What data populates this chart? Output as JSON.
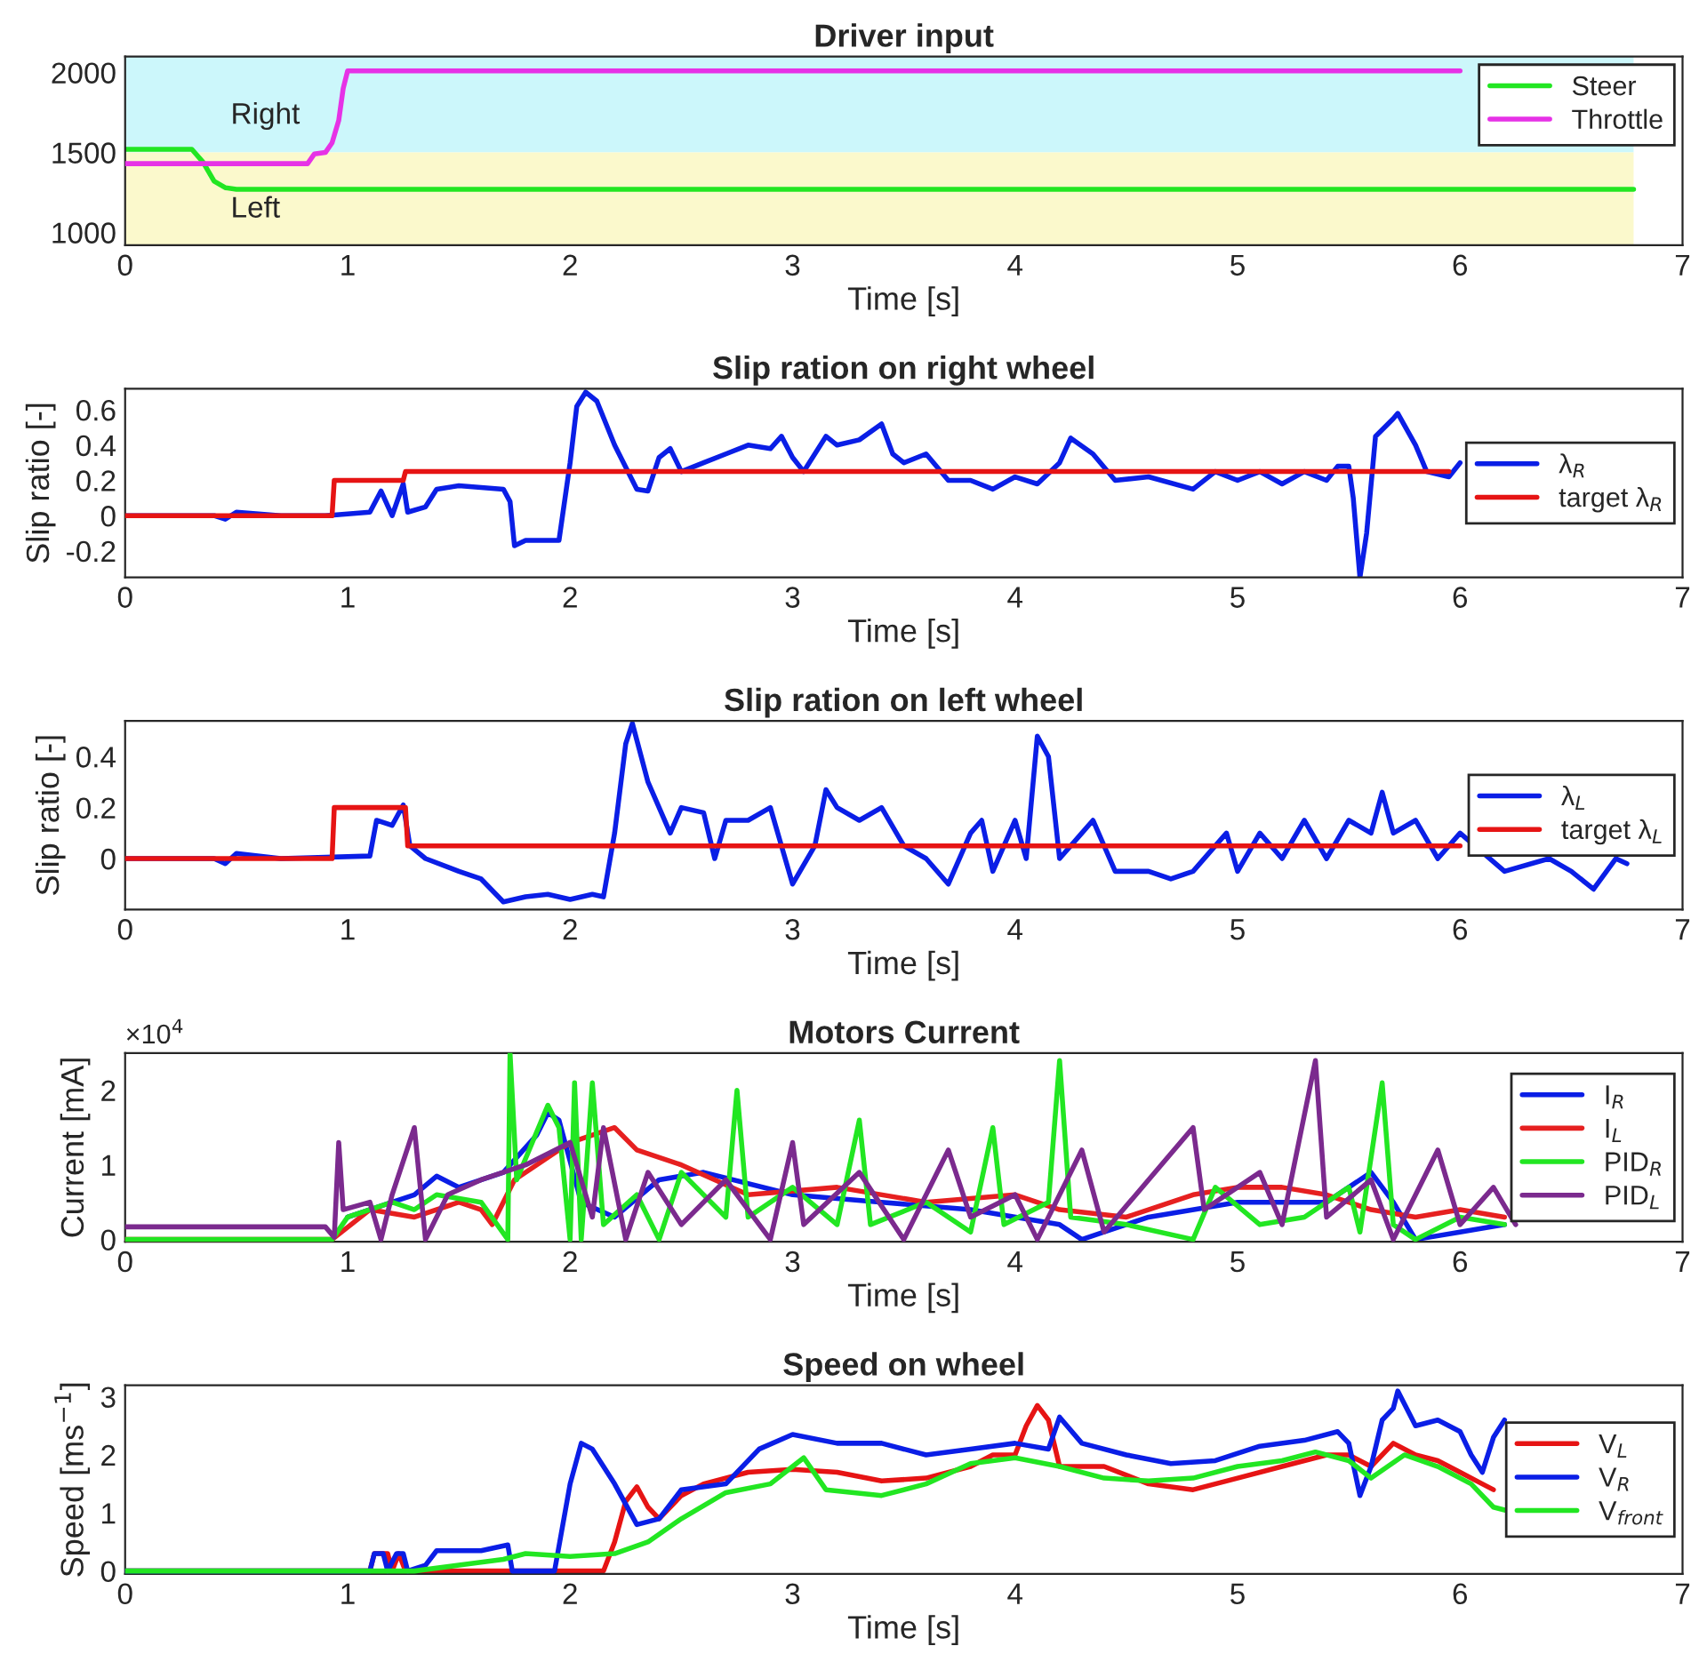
{
  "chart_data": [
    {
      "type": "line",
      "title": "Driver input",
      "xlabel": "Time [s]",
      "xlim": [
        0,
        7
      ],
      "xticks": [
        0,
        1,
        2,
        3,
        4,
        5,
        6,
        7
      ],
      "ylim": [
        920,
        2100
      ],
      "yticks": [
        1000,
        1500,
        2000
      ],
      "legend": "top right",
      "bands": [
        {
          "axis": "y",
          "from": 1500,
          "to": 2100,
          "label": "Right",
          "color": "#ccf7fb"
        },
        {
          "axis": "y",
          "from": 920,
          "to": 1500,
          "label": "Left",
          "color": "#fbf9cc"
        }
      ],
      "series": [
        {
          "name": "Steer",
          "color": "#22e622",
          "x": [
            0,
            0.3,
            0.35,
            0.4,
            0.45,
            0.5,
            0.6,
            6.78
          ],
          "values": [
            1520,
            1520,
            1440,
            1320,
            1280,
            1270,
            1270,
            1270
          ]
        },
        {
          "name": "Throttle",
          "color": "#e632e6",
          "x": [
            0,
            0.82,
            0.85,
            0.9,
            0.93,
            0.96,
            0.98,
            1.0,
            6.0
          ],
          "values": [
            1430,
            1430,
            1490,
            1500,
            1560,
            1700,
            1900,
            2010,
            2010
          ]
        }
      ]
    },
    {
      "type": "line",
      "title": "Slip ration on right wheel",
      "xlabel": "Time [s]",
      "ylabel": "Slip ratio [-]",
      "xlim": [
        0,
        7
      ],
      "xticks": [
        0,
        1,
        2,
        3,
        4,
        5,
        6,
        7
      ],
      "ylim": [
        -0.35,
        0.72
      ],
      "yticks": [
        -0.2,
        0,
        0.2,
        0.4,
        0.6
      ],
      "legend": "right",
      "series": [
        {
          "name": "λ$_{R}$",
          "color": "#0a1ee6",
          "x": [
            0,
            0.4,
            0.45,
            0.5,
            0.7,
            0.9,
            1.1,
            1.15,
            1.2,
            1.25,
            1.27,
            1.35,
            1.4,
            1.5,
            1.7,
            1.73,
            1.75,
            1.8,
            1.95,
            2.0,
            2.03,
            2.07,
            2.12,
            2.2,
            2.3,
            2.35,
            2.4,
            2.45,
            2.5,
            2.6,
            2.7,
            2.8,
            2.9,
            2.95,
            3.0,
            3.05,
            3.15,
            3.2,
            3.3,
            3.4,
            3.45,
            3.5,
            3.6,
            3.7,
            3.8,
            3.9,
            4.0,
            4.1,
            4.2,
            4.25,
            4.35,
            4.45,
            4.6,
            4.8,
            4.9,
            5.0,
            5.1,
            5.2,
            5.3,
            5.4,
            5.45,
            5.5,
            5.52,
            5.55,
            5.58,
            5.62,
            5.7,
            5.72,
            5.8,
            5.85,
            5.95,
            6.0
          ],
          "values": [
            0,
            0,
            -0.02,
            0.02,
            0,
            0,
            0.02,
            0.14,
            0,
            0.18,
            0.02,
            0.05,
            0.15,
            0.17,
            0.15,
            0.08,
            -0.17,
            -0.14,
            -0.14,
            0.3,
            0.62,
            0.7,
            0.65,
            0.4,
            0.15,
            0.14,
            0.33,
            0.38,
            0.25,
            0.3,
            0.35,
            0.4,
            0.38,
            0.45,
            0.33,
            0.25,
            0.45,
            0.4,
            0.43,
            0.52,
            0.35,
            0.3,
            0.35,
            0.2,
            0.2,
            0.15,
            0.22,
            0.18,
            0.3,
            0.44,
            0.35,
            0.2,
            0.22,
            0.15,
            0.25,
            0.2,
            0.25,
            0.18,
            0.25,
            0.2,
            0.28,
            0.28,
            0.1,
            -0.35,
            -0.1,
            0.45,
            0.55,
            0.58,
            0.4,
            0.25,
            0.22,
            0.3
          ]
        },
        {
          "name": "target λ$_{R}$",
          "color": "#e61414",
          "x": [
            0,
            0.93,
            0.94,
            1.25,
            1.26,
            5.95
          ],
          "values": [
            0,
            0,
            0.2,
            0.2,
            0.25,
            0.25
          ]
        }
      ]
    },
    {
      "type": "line",
      "title": "Slip ration on left wheel",
      "xlabel": "Time [s]",
      "ylabel": "Slip ratio [-]",
      "xlim": [
        0,
        7
      ],
      "xticks": [
        0,
        1,
        2,
        3,
        4,
        5,
        6,
        7
      ],
      "ylim": [
        -0.2,
        0.54
      ],
      "yticks": [
        0,
        0.2,
        0.4
      ],
      "legend": "right",
      "series": [
        {
          "name": "λ$_{L}$",
          "color": "#0a1ee6",
          "x": [
            0,
            0.4,
            0.45,
            0.5,
            0.7,
            1.1,
            1.13,
            1.2,
            1.25,
            1.28,
            1.35,
            1.5,
            1.6,
            1.7,
            1.8,
            1.9,
            2.0,
            2.1,
            2.15,
            2.2,
            2.25,
            2.28,
            2.35,
            2.45,
            2.5,
            2.6,
            2.65,
            2.7,
            2.8,
            2.9,
            2.95,
            3.0,
            3.1,
            3.15,
            3.2,
            3.3,
            3.4,
            3.5,
            3.6,
            3.7,
            3.8,
            3.85,
            3.9,
            4.0,
            4.05,
            4.1,
            4.15,
            4.2,
            4.3,
            4.35,
            4.45,
            4.6,
            4.7,
            4.8,
            4.9,
            4.95,
            5.0,
            5.1,
            5.2,
            5.3,
            5.4,
            5.5,
            5.6,
            5.65,
            5.7,
            5.8,
            5.9,
            6.0,
            6.2,
            6.4,
            6.5,
            6.6,
            6.7,
            6.75
          ],
          "values": [
            0,
            0,
            -0.02,
            0.02,
            0,
            0.01,
            0.15,
            0.13,
            0.21,
            0.05,
            0,
            -0.05,
            -0.08,
            -0.17,
            -0.15,
            -0.14,
            -0.16,
            -0.14,
            -0.15,
            0.1,
            0.45,
            0.53,
            0.3,
            0.1,
            0.2,
            0.18,
            0,
            0.15,
            0.15,
            0.2,
            0.05,
            -0.1,
            0.05,
            0.27,
            0.2,
            0.15,
            0.2,
            0.05,
            0,
            -0.1,
            0.1,
            0.15,
            -0.05,
            0.15,
            0,
            0.48,
            0.4,
            0,
            0.1,
            0.15,
            -0.05,
            -0.05,
            -0.08,
            -0.05,
            0.05,
            0.1,
            -0.05,
            0.1,
            0,
            0.15,
            0,
            0.15,
            0.1,
            0.26,
            0.1,
            0.15,
            0,
            0.1,
            -0.05,
            0,
            -0.05,
            -0.12,
            0,
            -0.02
          ]
        },
        {
          "name": "target λ$_{L}$",
          "color": "#e61414",
          "x": [
            0,
            0.93,
            0.94,
            1.26,
            1.27,
            6.0
          ],
          "values": [
            0,
            0,
            0.2,
            0.2,
            0.05,
            0.05
          ]
        }
      ]
    },
    {
      "type": "line",
      "title": "Motors Current",
      "xlabel": "Time [s]",
      "ylabel": "Current [mA]",
      "xlim": [
        0,
        7
      ],
      "xticks": [
        0,
        1,
        2,
        3,
        4,
        5,
        6,
        7
      ],
      "ylim": [
        -0.03,
        2.5
      ],
      "yticks": [
        0,
        1,
        2
      ],
      "legend": "right",
      "annotations": [
        "×10$^{4}$"
      ],
      "series": [
        {
          "name": "I$_{R}$",
          "color": "#0a1ee6",
          "x": [
            1.0,
            1.2,
            1.3,
            1.4,
            1.5,
            1.7,
            1.85,
            1.9,
            1.95,
            2.05,
            2.2,
            2.4,
            2.6,
            3.0,
            3.4,
            3.8,
            4.2,
            4.3,
            4.4,
            4.6,
            5.0,
            5.4,
            5.6,
            5.7,
            5.8,
            6.0,
            6.2
          ],
          "values": [
            0.3,
            0.5,
            0.6,
            0.85,
            0.7,
            0.9,
            1.4,
            1.7,
            1.6,
            0.5,
            0.3,
            0.8,
            0.9,
            0.6,
            0.5,
            0.4,
            0.2,
            0,
            0.1,
            0.3,
            0.5,
            0.5,
            0.9,
            0.5,
            0,
            0.1,
            0.2
          ]
        },
        {
          "name": "I$_{L}$",
          "color": "#e62020",
          "x": [
            0,
            0.93,
            1.1,
            1.3,
            1.5,
            1.6,
            1.65,
            1.75,
            2.0,
            2.2,
            2.3,
            2.5,
            2.8,
            3.2,
            3.6,
            4.0,
            4.2,
            4.5,
            4.8,
            5.0,
            5.2,
            5.4,
            5.6,
            5.8,
            6.0,
            6.2
          ],
          "values": [
            0,
            0,
            0.4,
            0.3,
            0.5,
            0.4,
            0.2,
            0.8,
            1.3,
            1.5,
            1.2,
            1.0,
            0.6,
            0.7,
            0.5,
            0.6,
            0.4,
            0.3,
            0.6,
            0.7,
            0.7,
            0.6,
            0.4,
            0.3,
            0.4,
            0.3
          ]
        },
        {
          "name": "PID$_{R}$",
          "color": "#22e622",
          "x": [
            0,
            0.93,
            1.0,
            1.2,
            1.3,
            1.4,
            1.6,
            1.72,
            1.73,
            1.76,
            1.9,
            1.95,
            2.0,
            2.02,
            2.05,
            2.1,
            2.15,
            2.3,
            2.4,
            2.5,
            2.7,
            2.75,
            2.8,
            3.0,
            3.2,
            3.3,
            3.35,
            3.6,
            3.8,
            3.9,
            3.95,
            4.15,
            4.2,
            4.25,
            4.5,
            4.8,
            4.9,
            5.1,
            5.3,
            5.5,
            5.55,
            5.65,
            5.7,
            5.8,
            6.0,
            6.2
          ],
          "values": [
            0,
            0,
            0.3,
            0.5,
            0.4,
            0.6,
            0.5,
            0,
            2.5,
            0.8,
            1.8,
            1.5,
            0,
            2.1,
            0,
            2.1,
            0.2,
            0.6,
            0,
            0.9,
            0.3,
            2.0,
            0.3,
            0.7,
            0.2,
            1.6,
            0.2,
            0.5,
            0.1,
            1.5,
            0.2,
            0.5,
            2.4,
            0.3,
            0.2,
            0,
            0.7,
            0.2,
            0.3,
            0.7,
            0.1,
            2.1,
            0.2,
            0,
            0.3,
            0.2
          ]
        },
        {
          "name": "PID$_{L}$",
          "color": "#7b2a8e",
          "x": [
            0,
            0.9,
            0.94,
            0.96,
            0.98,
            1.1,
            1.15,
            1.2,
            1.3,
            1.35,
            1.45,
            1.6,
            1.8,
            2.0,
            2.1,
            2.15,
            2.25,
            2.35,
            2.5,
            2.7,
            2.9,
            3.0,
            3.05,
            3.3,
            3.5,
            3.7,
            3.8,
            4.0,
            4.1,
            4.3,
            4.4,
            4.6,
            4.8,
            4.85,
            5.1,
            5.2,
            5.35,
            5.4,
            5.6,
            5.7,
            5.9,
            6.0,
            6.15,
            6.25
          ],
          "values": [
            0.17,
            0.17,
            0.03,
            1.3,
            0.4,
            0.5,
            0,
            0.6,
            1.5,
            0,
            0.6,
            0.8,
            1.0,
            1.3,
            0.3,
            1.5,
            0,
            0.9,
            0.2,
            0.8,
            0,
            1.3,
            0.2,
            0.9,
            0,
            1.2,
            0.3,
            0.6,
            0,
            1.2,
            0.1,
            0.8,
            1.5,
            0.4,
            0.9,
            0.2,
            2.4,
            0.3,
            0.8,
            0,
            1.2,
            0.2,
            0.7,
            0.2
          ]
        }
      ]
    },
    {
      "type": "line",
      "title": "Speed on wheel",
      "xlabel": "Time [s]",
      "ylabel": "Speed [ms$^{−1}$]",
      "xlim": [
        0,
        7
      ],
      "xticks": [
        0,
        1,
        2,
        3,
        4,
        5,
        6,
        7
      ],
      "ylim": [
        -0.05,
        3.2
      ],
      "yticks": [
        0,
        1,
        2,
        3
      ],
      "legend": "right",
      "series": [
        {
          "name": "V$_{L}$",
          "color": "#e61414",
          "x": [
            0,
            1.1,
            1.12,
            1.18,
            1.2,
            1.23,
            1.26,
            2.15,
            2.2,
            2.25,
            2.3,
            2.35,
            2.4,
            2.5,
            2.6,
            2.8,
            3.0,
            3.2,
            3.4,
            3.6,
            3.8,
            3.9,
            4.0,
            4.05,
            4.1,
            4.15,
            4.2,
            4.4,
            4.6,
            4.8,
            5.0,
            5.2,
            5.4,
            5.5,
            5.6,
            5.7,
            5.8,
            5.9,
            6.0,
            6.1,
            6.15
          ],
          "values": [
            0,
            0,
            0.3,
            0.3,
            0,
            0.3,
            0,
            0,
            0.5,
            1.2,
            1.45,
            1.1,
            0.9,
            1.3,
            1.5,
            1.7,
            1.75,
            1.7,
            1.55,
            1.6,
            1.8,
            2.0,
            2.0,
            2.5,
            2.85,
            2.6,
            1.8,
            1.8,
            1.5,
            1.4,
            1.6,
            1.8,
            2.0,
            2.0,
            1.8,
            2.2,
            2.0,
            1.9,
            1.7,
            1.5,
            1.4
          ]
        },
        {
          "name": "V$_{R}$",
          "color": "#0a1ee6",
          "x": [
            0,
            1.1,
            1.12,
            1.16,
            1.18,
            1.22,
            1.25,
            1.27,
            1.35,
            1.4,
            1.6,
            1.72,
            1.74,
            1.93,
            2.0,
            2.05,
            2.1,
            2.2,
            2.3,
            2.4,
            2.5,
            2.7,
            2.85,
            3.0,
            3.2,
            3.4,
            3.6,
            3.8,
            4.0,
            4.15,
            4.2,
            4.3,
            4.5,
            4.7,
            4.9,
            5.1,
            5.3,
            5.45,
            5.5,
            5.55,
            5.6,
            5.65,
            5.7,
            5.72,
            5.8,
            5.9,
            6.0,
            6.05,
            6.1,
            6.15,
            6.2
          ],
          "values": [
            0,
            0,
            0.3,
            0.3,
            0,
            0.3,
            0.3,
            0,
            0.1,
            0.35,
            0.35,
            0.45,
            0,
            0,
            1.5,
            2.2,
            2.1,
            1.5,
            0.8,
            0.9,
            1.4,
            1.5,
            2.1,
            2.35,
            2.2,
            2.2,
            2.0,
            2.1,
            2.2,
            2.1,
            2.65,
            2.2,
            2.0,
            1.85,
            1.9,
            2.15,
            2.25,
            2.4,
            2.2,
            1.3,
            1.8,
            2.6,
            2.8,
            3.1,
            2.5,
            2.6,
            2.4,
            2.0,
            1.7,
            2.3,
            2.6
          ]
        },
        {
          "name": "V$_{front}$",
          "color": "#22e622",
          "x": [
            0,
            1.3,
            1.5,
            1.7,
            1.8,
            2.0,
            2.2,
            2.35,
            2.5,
            2.7,
            2.9,
            3.0,
            3.05,
            3.15,
            3.4,
            3.6,
            3.8,
            4.0,
            4.2,
            4.4,
            4.6,
            4.8,
            5.0,
            5.2,
            5.35,
            5.5,
            5.6,
            5.75,
            5.9,
            6.05,
            6.15,
            6.25
          ],
          "values": [
            0,
            0,
            0.1,
            0.2,
            0.3,
            0.25,
            0.3,
            0.5,
            0.9,
            1.35,
            1.5,
            1.8,
            1.95,
            1.4,
            1.3,
            1.5,
            1.85,
            1.95,
            1.8,
            1.6,
            1.55,
            1.6,
            1.8,
            1.9,
            2.05,
            1.9,
            1.6,
            2.0,
            1.8,
            1.5,
            1.1,
            1.0
          ]
        }
      ]
    }
  ]
}
